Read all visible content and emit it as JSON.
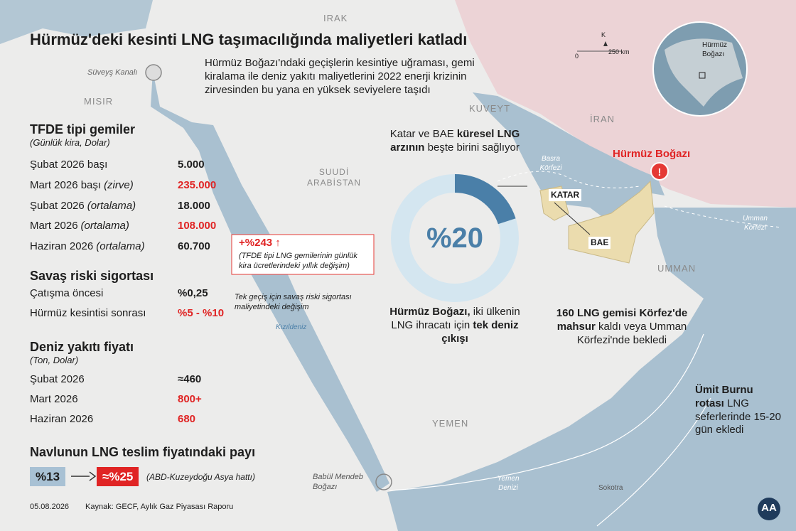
{
  "header": {
    "title": "Hürmüz'deki kesinti LNG taşımacılığında maliyetleri katladı",
    "intro": "Hürmüz Boğazı'ndaki geçişlerin kesintiye uğraması, gemi kiralama ile deniz yakıtı maliyetlerini 2022 enerji krizinin zirvesinden bu yana en yüksek seviyelere taşıdı"
  },
  "tfde": {
    "title": "TFDE tipi gemiler",
    "subtitle": "(Günlük kira, Dolar)",
    "rows": [
      {
        "label": "Şubat 2026 başı",
        "value": "5.000",
        "red": false
      },
      {
        "label": "Mart 2026 başı",
        "note": "(zirve)",
        "value": "235.000",
        "red": true
      },
      {
        "label": "Şubat 2026",
        "note": "(ortalama)",
        "value": "18.000",
        "red": false
      },
      {
        "label": "Mart 2026",
        "note": "(ortalama)",
        "value": "108.000",
        "red": true
      },
      {
        "label": "Haziran 2026",
        "note": "(ortalama)",
        "value": "60.700",
        "red": false
      }
    ]
  },
  "callout": {
    "value": "+%243 ↑",
    "text": "(TFDE tipi LNG gemilerinin günlük kira ücretlerindeki yıllık değişim)"
  },
  "insurance": {
    "title": "Savaş riski sigortası",
    "rows": [
      {
        "label": "Çatışma öncesi",
        "value": "%0,25",
        "red": false
      },
      {
        "label": "Hürmüz kesintisi sonrası",
        "value": "%5 - %10",
        "red": true
      }
    ],
    "note": "Tek geçiş için savaş riski sigortası maliyetindeki değişim"
  },
  "fuel": {
    "title": "Deniz yakıtı fiyatı",
    "subtitle": "(Ton, Dolar)",
    "rows": [
      {
        "label": "Şubat 2026",
        "value": "≈460",
        "red": false
      },
      {
        "label": "Mart 2026",
        "value": "800+",
        "red": true
      },
      {
        "label": "Haziran 2026",
        "value": "680",
        "red": true
      }
    ]
  },
  "freight": {
    "title": "Navlunun LNG teslim fiyatındaki payı",
    "from": "%13",
    "to": "≈%25",
    "note": "(ABD-Kuzeydoğu Asya hattı)"
  },
  "donut": {
    "value": 20,
    "label": "%20",
    "caption": [
      {
        "text": "Katar ve BAE ",
        "bold": false
      },
      {
        "text": "küresel LNG arzının",
        "bold": true
      },
      {
        "text": " beşte birini sağlıyor",
        "bold": false
      }
    ],
    "bottom": [
      {
        "text": "Hürmüz Boğazı,",
        "bold": true
      },
      {
        "text": " iki ülkenin LNG ihracatı için ",
        "bold": false
      },
      {
        "text": "tek deniz çıkışı",
        "bold": true
      }
    ]
  },
  "notes": {
    "stranded": [
      {
        "text": "160 LNG gemisi Körfez'de mahsur",
        "bold": true
      },
      {
        "text": " kaldı veya Umman Körfezi'nde bekledi",
        "bold": false
      }
    ],
    "cape": [
      {
        "text": "Ümit Burnu rotası",
        "bold": true
      },
      {
        "text": " LNG seferlerinde 15-20 gün ekledi",
        "bold": false
      }
    ]
  },
  "map_labels": {
    "iraq": "IRAK",
    "egypt": "MISIR",
    "suez": "Süveyş Kanalı",
    "kuwait": "KUVEYT",
    "iran": "İRAN",
    "saudi": "SUUDİ ARABİSTAN",
    "gulf": "Basra Körfezi",
    "qatar": "KATAR",
    "uae": "BAE",
    "hormuz": "Hürmüz Boğazı",
    "oman": "UMMAN",
    "gulf_oman": "Umman Körfezi",
    "red_sea": "Kızıldeniz",
    "yemen": "YEMEN",
    "yemen_sea": "Yemen Denizi",
    "bab": "Babül Mendeb Boğazı",
    "socotra": "Sokotra"
  },
  "scale": {
    "north": "K",
    "zero": "0",
    "distance": "250 km"
  },
  "inset_label": "Hürmüz Boğazı",
  "footer": {
    "date": "05.08.2026",
    "source": "Kaynak: GECF, Aylık Gaz Piyasası Raporu",
    "logo": "AA"
  }
}
